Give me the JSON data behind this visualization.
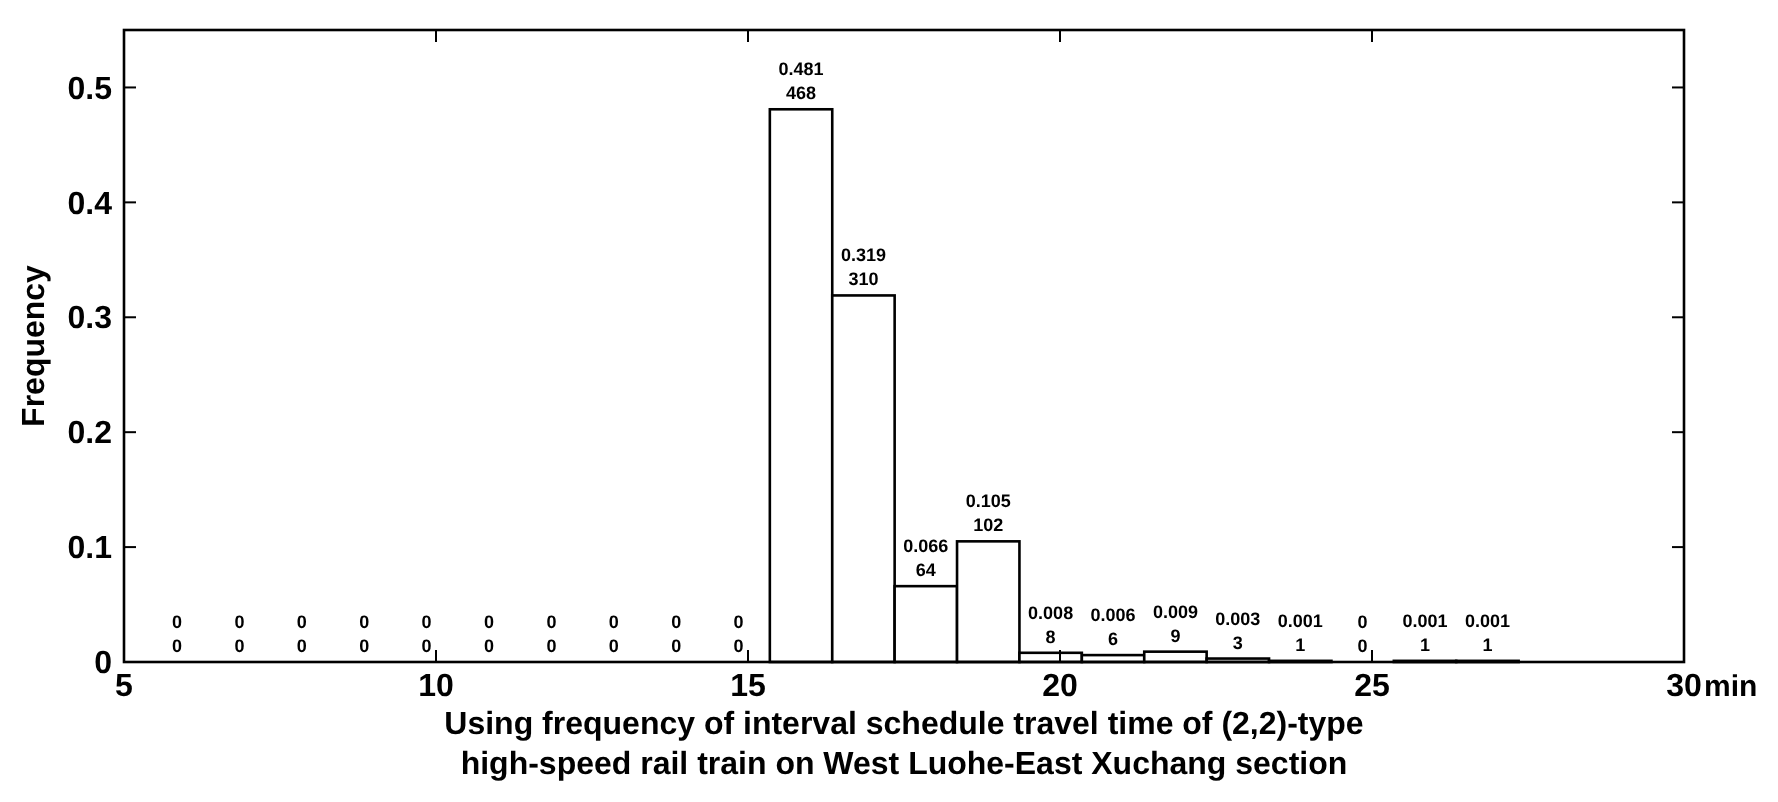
{
  "chart_data": {
    "type": "histogram",
    "ylabel": "Frequency",
    "xlabel": "Using frequency of interval schedule travel time of (2,2)-type\nhigh-speed rail train on West Luohe-East Xuchang section",
    "bins": [
      5.35,
      6.35,
      7.35,
      8.35,
      9.35,
      10.35,
      11.35,
      12.35,
      13.35,
      14.35,
      15.35,
      16.35,
      17.35,
      18.35,
      19.35,
      20.35,
      21.35,
      22.35,
      23.35,
      24.35,
      25.35,
      26.35,
      27.35
    ],
    "values": [
      0,
      0,
      0,
      0,
      0,
      0,
      0,
      0,
      0,
      0,
      0.481,
      0.319,
      0.066,
      0.105,
      0.008,
      0.006,
      0.009,
      0.003,
      0.001,
      0,
      0.001,
      0.001
    ],
    "value_labels": [
      "0",
      "0",
      "0",
      "0",
      "0",
      "0",
      "0",
      "0",
      "0",
      "0",
      "0.481",
      "0.319",
      "0.066",
      "0.105",
      "0.008",
      "0.006",
      "0.009",
      "0.003",
      "0.001",
      "0",
      "0.001",
      "0.001"
    ],
    "color": "#ffffff",
    "xlim": [
      5,
      30
    ],
    "xticks": [
      5,
      10,
      15,
      20,
      25,
      30
    ],
    "ylim": [
      0,
      0.55
    ],
    "yticks": [
      0,
      0.1,
      0.2,
      0.3,
      0.4,
      0.5
    ],
    "annotations": [
      {
        "text": "0",
        "x": 5.85,
        "y": 0
      },
      {
        "text": "0",
        "x": 6.85,
        "y": 0
      },
      {
        "text": "0",
        "x": 7.85,
        "y": 0
      },
      {
        "text": "0",
        "x": 8.85,
        "y": 0
      },
      {
        "text": "0",
        "x": 9.85,
        "y": 0
      },
      {
        "text": "0",
        "x": 10.85,
        "y": 0
      },
      {
        "text": "0",
        "x": 11.85,
        "y": 0
      },
      {
        "text": "0",
        "x": 12.85,
        "y": 0
      },
      {
        "text": "0",
        "x": 13.85,
        "y": 0
      },
      {
        "text": "0",
        "x": 14.85,
        "y": 0
      },
      {
        "text": "468",
        "x": 15.85,
        "y": 0.481
      },
      {
        "text": "310",
        "x": 16.85,
        "y": 0.319
      },
      {
        "text": "64",
        "x": 17.85,
        "y": 0.066
      },
      {
        "text": "102",
        "x": 18.85,
        "y": 0.105
      },
      {
        "text": "8",
        "x": 19.85,
        "y": 0.008
      },
      {
        "text": "6",
        "x": 20.85,
        "y": 0.006
      },
      {
        "text": "9",
        "x": 21.85,
        "y": 0.009
      },
      {
        "text": "3",
        "x": 22.85,
        "y": 0.003
      },
      {
        "text": "1",
        "x": 23.85,
        "y": 0.001
      },
      {
        "text": "0",
        "x": 24.85,
        "y": 0
      },
      {
        "text": "1",
        "x": 25.85,
        "y": 0.001
      },
      {
        "text": "1",
        "x": 26.85,
        "y": 0.001
      },
      "min"
    ]
  }
}
